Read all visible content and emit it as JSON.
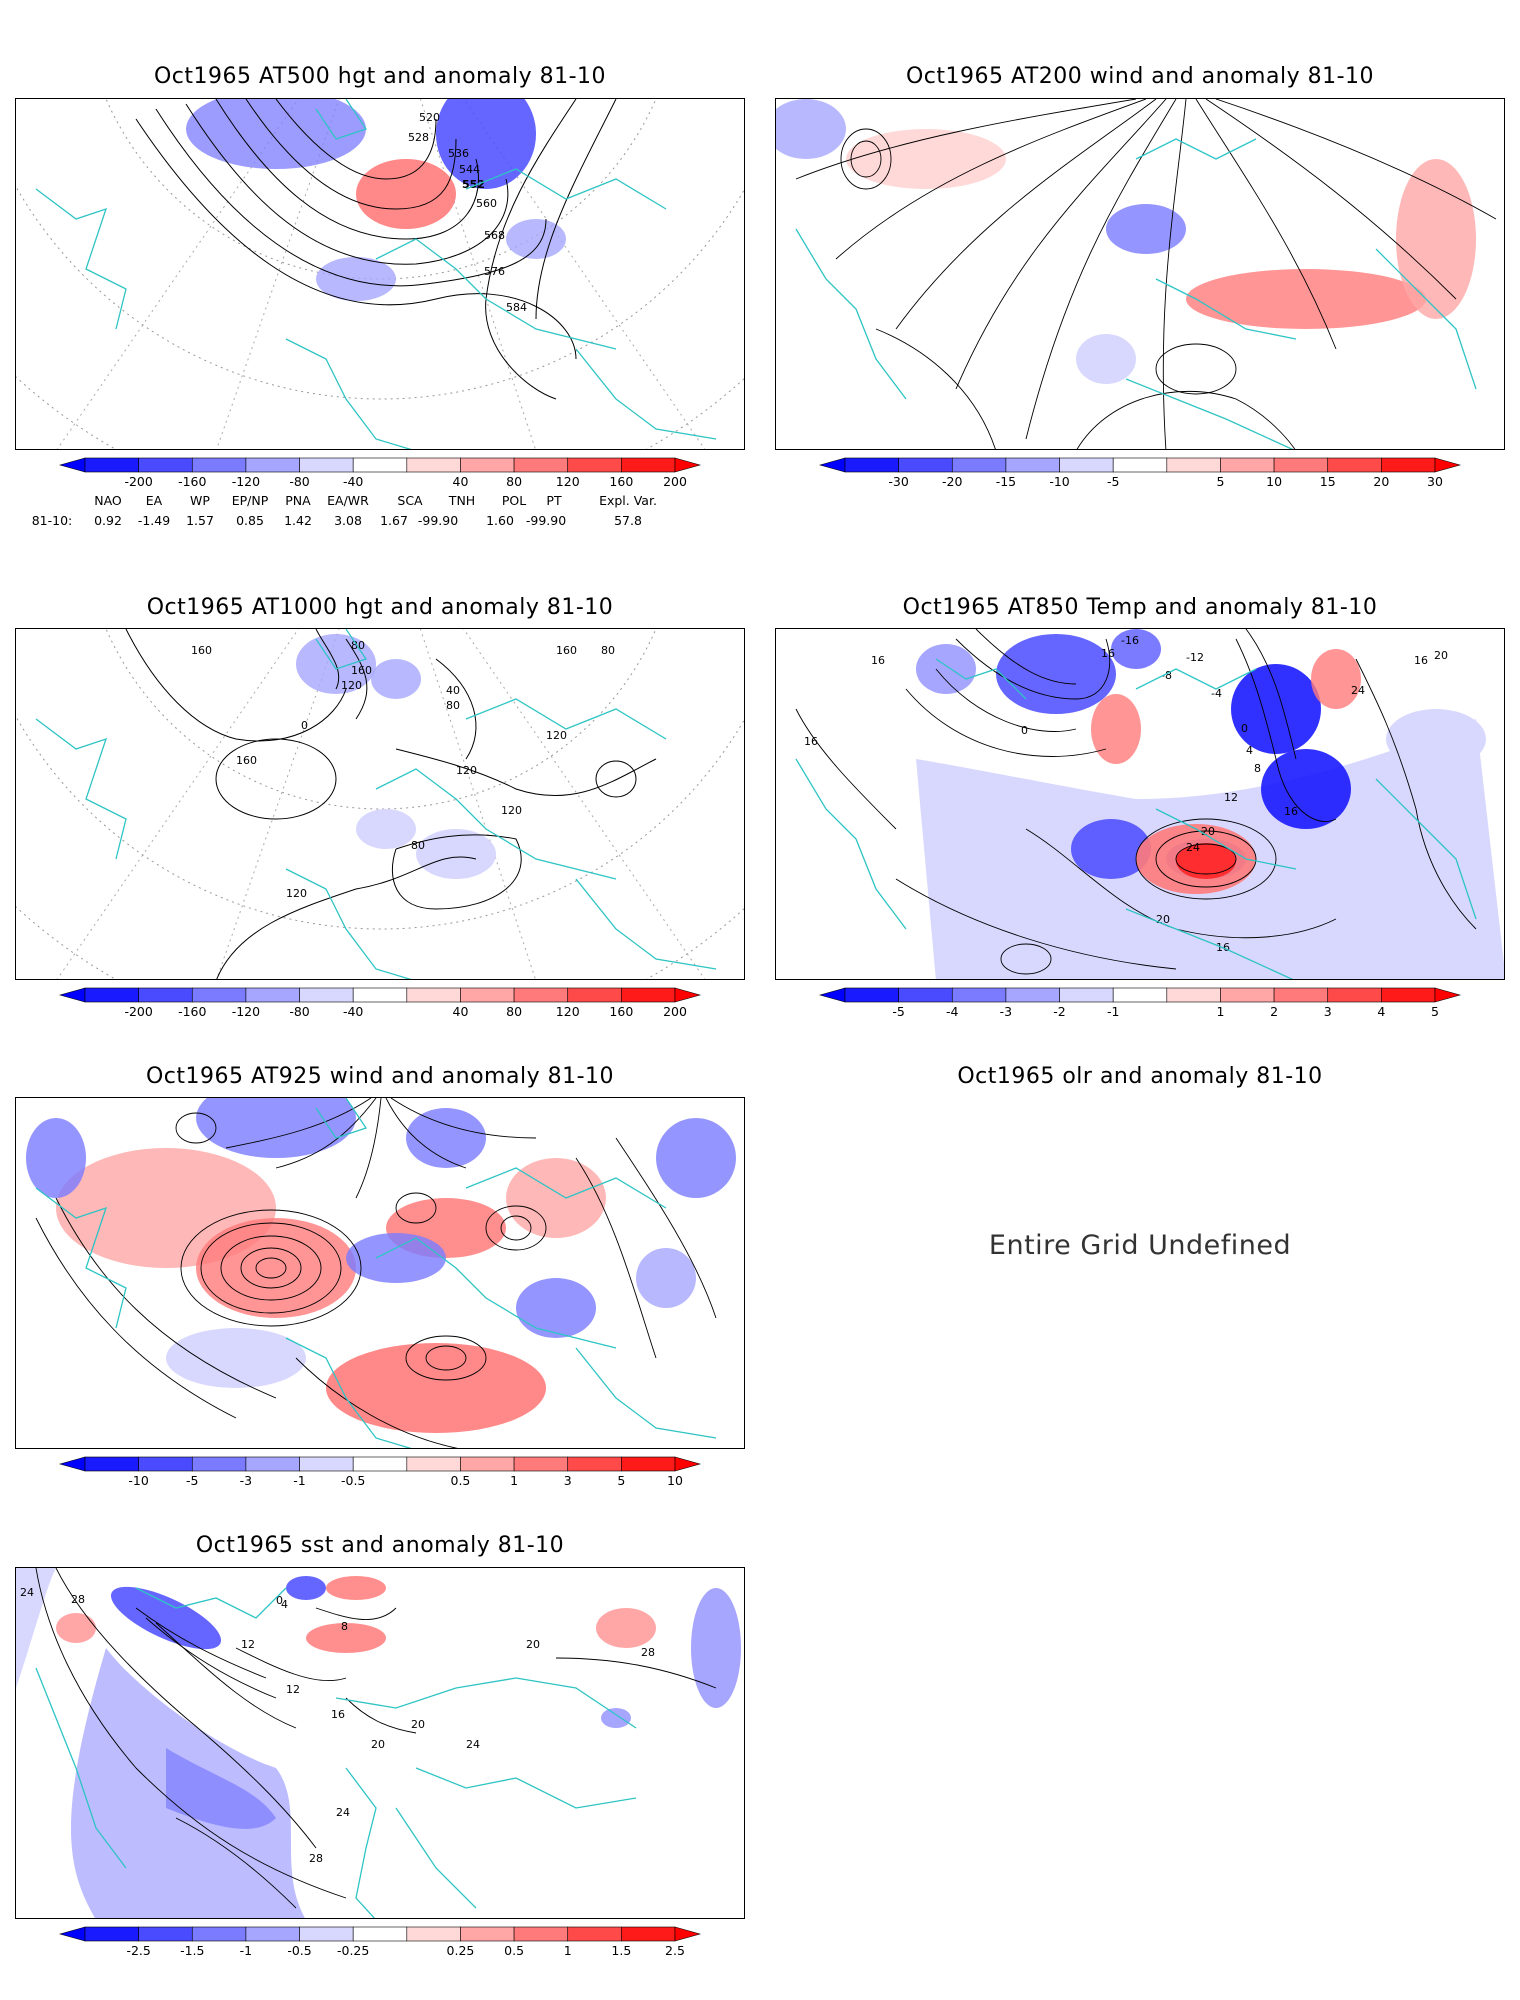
{
  "panels": [
    {
      "id": "p500",
      "title": "Oct1965 AT500 hgt and anomaly 81-10",
      "contour_labels": [
        "520",
        "528",
        "536",
        "544",
        "552",
        "560",
        "568",
        "576",
        "584"
      ],
      "colorbar": {
        "labels": [
          "-200",
          "-160",
          "-120",
          "-80",
          "-40",
          "40",
          "80",
          "120",
          "160",
          "200"
        ]
      }
    },
    {
      "id": "p200",
      "title": "Oct1965 AT200 wind and anomaly 81-10",
      "colorbar": {
        "labels": [
          "-30",
          "-20",
          "-15",
          "-10",
          "-5",
          "5",
          "10",
          "15",
          "20",
          "30"
        ]
      }
    },
    {
      "id": "p1000",
      "title": "Oct1965 AT1000 hgt and anomaly 81-10",
      "contour_labels": [
        "160",
        "80",
        "160",
        "120",
        "0",
        "40",
        "80",
        "160",
        "80",
        "120",
        "160",
        "120",
        "120",
        "80",
        "120"
      ],
      "colorbar": {
        "labels": [
          "-200",
          "-160",
          "-120",
          "-80",
          "-40",
          "40",
          "80",
          "120",
          "160",
          "200"
        ]
      }
    },
    {
      "id": "p850",
      "title": "Oct1965 AT850 Temp and anomaly 81-10",
      "contour_labels": [
        "-16",
        "-12",
        "16",
        "-8",
        "-4",
        "0",
        "0",
        "4",
        "8",
        "12",
        "16",
        "20",
        "24",
        "16",
        "20",
        "20",
        "24",
        "16",
        "16",
        "16"
      ],
      "colorbar": {
        "labels": [
          "-5",
          "-4",
          "-3",
          "-2",
          "-1",
          "1",
          "2",
          "3",
          "4",
          "5"
        ]
      }
    },
    {
      "id": "p925",
      "title": "Oct1965 AT925 wind and anomaly 81-10",
      "colorbar": {
        "labels": [
          "-10",
          "-5",
          "-3",
          "-1",
          "-0.5",
          "0.5",
          "1",
          "3",
          "5",
          "10"
        ]
      }
    },
    {
      "id": "polr",
      "title": "Oct1965 olr and anomaly 81-10",
      "undefined_text": "Entire Grid Undefined"
    },
    {
      "id": "psst",
      "title": "Oct1965 sst and anomaly 81-10",
      "contour_labels": [
        "24",
        "28",
        "12",
        "4",
        "8",
        "0",
        "12",
        "16",
        "20",
        "20",
        "24",
        "24",
        "28",
        "28",
        "20"
      ],
      "colorbar": {
        "labels": [
          "-2.5",
          "-1.5",
          "-1",
          "-0.5",
          "-0.25",
          "0.25",
          "0.5",
          "1",
          "1.5",
          "2.5"
        ]
      }
    }
  ],
  "index_table": {
    "headers": [
      "NAO",
      "EA",
      "WP",
      "EP/NP",
      "PNA",
      "EA/WR",
      "SCA",
      "TNH",
      "POL",
      "PT",
      "Expl. Var."
    ],
    "row_label": "81-10:",
    "values": [
      "0.92",
      "-1.49",
      "1.57",
      "0.85",
      "1.42",
      "3.08",
      "1.67",
      "-99.90",
      "1.60",
      "-99.90",
      "57.8"
    ]
  },
  "colors": {
    "border": "#000000",
    "coast": "#2ec4c4",
    "blue_scale": [
      "#1a1aff",
      "#4a4aff",
      "#7b7bff",
      "#a6a6ff",
      "#d8d8ff"
    ],
    "red_scale": [
      "#ffd8d8",
      "#ffa6a6",
      "#ff7b7b",
      "#ff4a4a",
      "#ff1a1a"
    ]
  }
}
